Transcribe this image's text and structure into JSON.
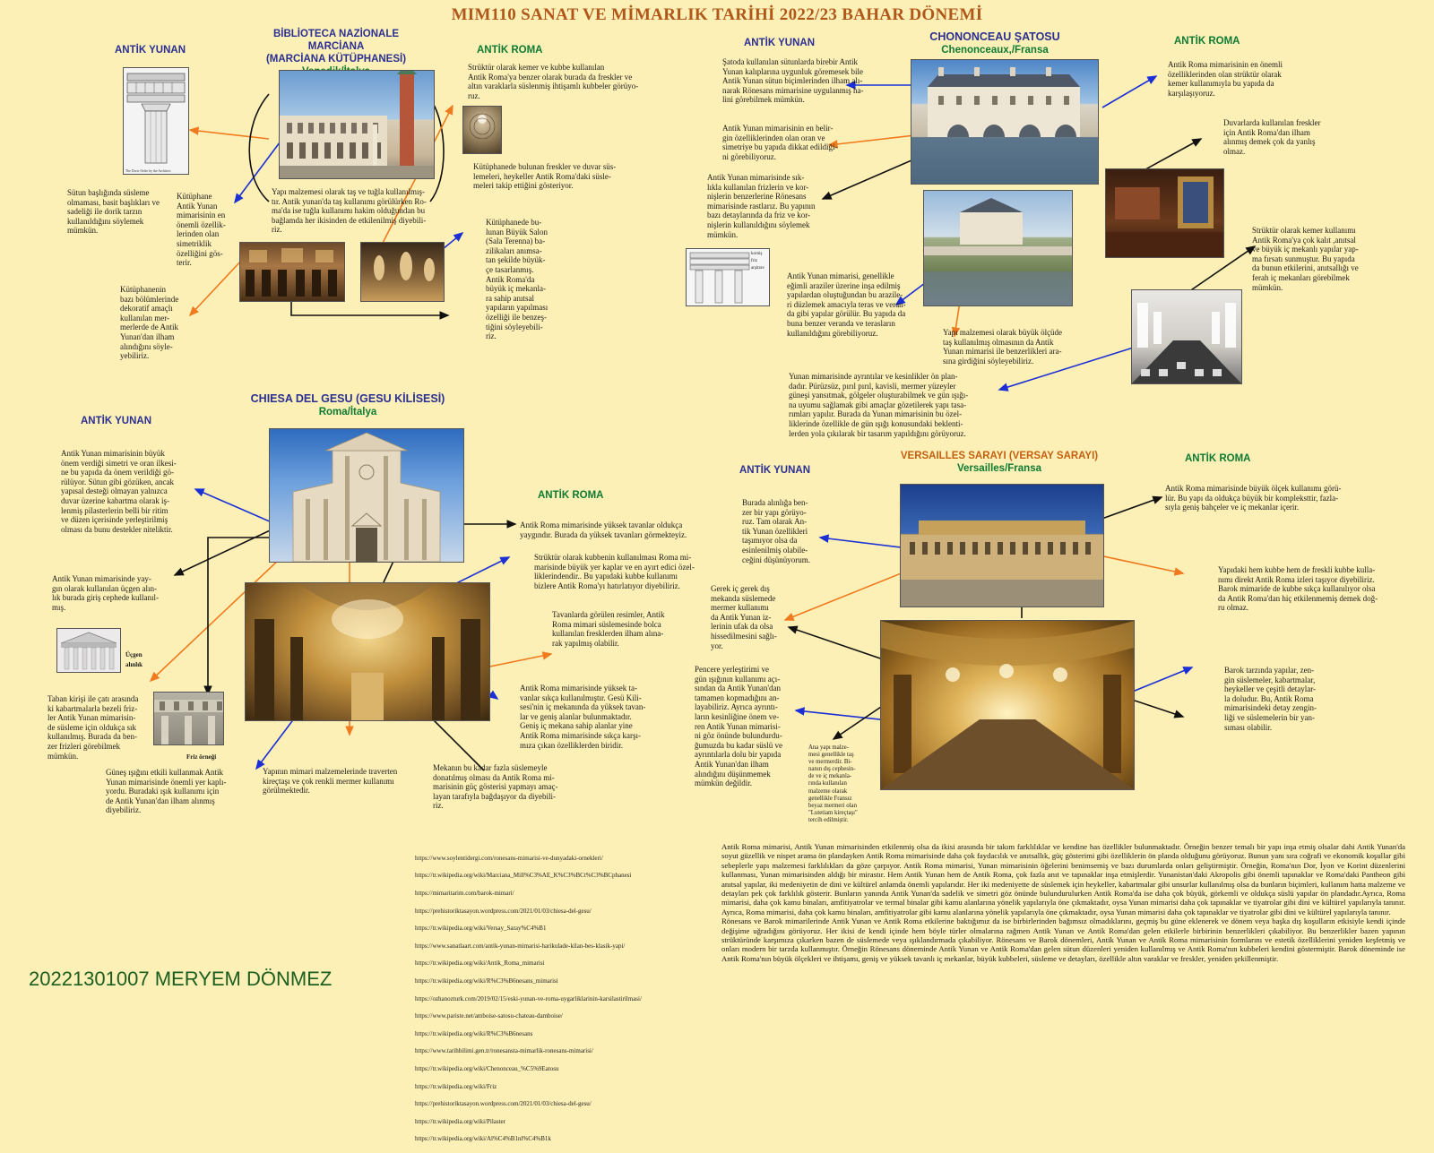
{
  "title": "MIM110 SANAT VE MİMARLIK TARİHİ 2022/23 BAHAR  DÖNEMİ",
  "labels": {
    "greek": "ANTİK YUNAN",
    "roman": "ANTİK ROMA"
  },
  "marciana": {
    "name1": "BİBLİOTECA NAZİONALE MARCİANA",
    "name2": "(MARCİANA KÜTÜPHANESİ)",
    "location": "Venedik/İtalya",
    "greek_caption": "The Doric Order by the Architect",
    "t_column": "Sütun başlığında süsleme olmaması, basit başlıkları ve sadeliği ile dorik tarzın kullanıldığını söylemek mümkün.",
    "t_library": "Kütüphane\nAntik Yunan\nmimarisinin en\nönemli özellik-\nlerinden olan\nsimetriklik\nözelliğini gös-\nterir.",
    "t_decor": "Kütüphanenin\nbazı bölümlerinde\ndekoratif amaçlı\nkullanılan mer-\nmerlerde de Antik\nYunan'dan ilham\nalındığını söyle-\nyebiliriz.",
    "t_material": "Yapı malzemesi olarak taş ve tuğla kullanılmış-\ntır. Antik yunan'da taş kullanımı görülürken Ro-\nma'da ise tuğla kullanımı hakim olduğundan bu\nbağlamda her ikisinden de etkilenilmiş diyebili-\nriz.",
    "t_roman_arch": "Strüktür olarak kemer ve kubbe kullanılan\nAntik Roma'ya benzer olarak burada da freskler ve\naltın varaklarla süslenmiş ihtişamlı kubbeler görüyo-\nruz.",
    "t_frescoes": "Kütüphanede bulunan freskler ve duvar süs-\nlemeleri, heykeller Antik Roma'daki süsle-\nmeleri takip ettiğini gösteriyor.",
    "t_salon": "Kütüphanede bu-\nlunan Büyük Salon\n(Sala Terenna) ba-\nzilikaları anımsa-\ntan şekilde büyük-\nçe tasarlanmış.\nAntik Roma'da\nbüyük iç mekanla-\nra sahip anıtsal\nyapıların yapılması\nözelliği ile benzeş-\ntiğini söyleyebili-\nriz."
  },
  "gesu": {
    "name": "CHIESA DEL GESU (GESU KİLİSESİ)",
    "location": "Roma/İtalya",
    "t_symmetry": "Antik Yunan mimarisinin büyük\nönem verdiği simetri ve oran ilkesi-\nne bu yapıda da önem verildiği gö-\nrülüyor. Sütun gibi gözüken, ancak\nyapısal desteği olmayan yalnızca\nduvar üzerine kabartma olarak iş-\nlenmiş pilasterlerin belli bir ritim\nve düzen içerisinde yerleştirilmiş\nolması da bunu destekler niteliktir.",
    "t_pediment": "Antik Yunan mimarisinde yay-\ngın olarak kullanılan üçgen alın-\nlık burada giriş cephede kullanıl-\nmış.",
    "cap_pediment": "Üçgen\nalınlık",
    "t_frieze": "Taban kirişi ile çatı arasında\nki kabartmalarla bezeli friz-\nler Antik Yunan mimarisin-\nde süsleme için oldukça sık\nkullanılmış. Burada da ben-\nzer frizleri görebilmek\nmümkün.",
    "cap_frieze": "Friz örneği",
    "t_light": "Güneş ışığını etkili kullanmak Antik\nYunan mimarisinde önemli yer kaplı-\nyordu. Buradaki ışık kullanımı için\nde Antik Yunan'dan ilham alınmış\ndiyebiliriz.",
    "t_travertine": "Yapının mimari malzemelerinde traverten\nkireçtaşı ve çok renkli mermer kullanımı\ngörülmektedir.",
    "t_ceilings": "Antik Roma mimarisinde yüksek tavanlar oldukça\nyaygındır. Burada da yüksek tavanları görmekteyiz.",
    "t_dome": "Strüktür olarak kubbenin kullanılması Roma mi-\nmarisinde büyük yer kaplar ve en ayırt edici özel-\nliklerindendir.. Bu yapıdaki kubbe kullanımı\nbizlere Antik Roma'yı hatırlatıyor diyebiliriz.",
    "t_paintings": "Tavanlarda görülen resimler, Antik\nRoma mimari süslemesinde bolca\nkullanılan  fresklerden ilham alına-\nrak yapılmış olabilir.",
    "t_high": "Antik Roma mimarisinde yüksek ta-\nvanlar sıkça kullanılmıştır. Gesü Kili-\nsesi'nin iç mekanında da yüksek tavan-\nlar ve geniş alanlar bulunmaktadır.\nGeniş iç mekana sahip alanlar yine\nAntik Roma mimarisinde sıkça karşı-\nmıza çıkan özelliklerden biridir.",
    "t_ornament": "Mekanın bu kadar fazla süslemeyle\ndonatılmış olması da Antik Roma mi-\nmarisinin güç gösterisi yapmayı amaç-\nlayan tarafıyla bağdaşıyor da diyebili-\nriz."
  },
  "chenonceau": {
    "name": "CHONONCEAU ŞATOSU",
    "location": "Chenonceaux,/Fransa",
    "t_columns": "Şatoda kullanılan sütunlarda birebir Antik\nYunan kalıplarına uygunluk göremesek bile\nAntik Yunan sütun biçimlerinden ilham alı-\nnarak Rönesans mimarisine uygulanmış ha-\nlini görebilmek mümkün.",
    "t_proportion": "Antik Yunan mimarisinin en belir-\ngin özelliklerinden olan oran ve\nsimetriye bu yapıda dikkat edildiği-\nni görebiliyoruz.",
    "t_frieze": "Antik Yunan mimarisinde sık-\nlıkla kullanılan frizlerin ve kor-\nnişlerin benzerlerine Rönesans\nmimarisinde rastlarız. Bu yapının\nbazı detaylarında da friz ve kor-\nnişlerin kullanıldığını söylemek\nmümkün.",
    "diagram_labels": [
      "korniş",
      "friz",
      "arşitrav"
    ],
    "t_slopes": "Antik Yunan mimarisi, genellikle\neğimli araziler üzerine inşa edilmiş\nyapılardan oluştuğundan  bu arazile-\nri düzlemek amacıyla teras ve veran-\nda gibi yapılar görülür. Bu yapıda da\nbuna benzer veranda ve terasların\nkullanıldığını görebiliyoruz.",
    "t_stone": "Yapı malzemesi olarak  büyük ölçüde\ntaş kullanılmış olmasının da Antik\nYunan mimarisi ile benzerlikleri ara-\nsına girdiğini söyleyebiliriz.",
    "t_precision": "Yunan  mimarisinde ayrıntılar ve kesinlikler ön plan-\ndadır. Pürüzsüz, pırıl pırıl, kavisli, mermer yüzeyler\ngüneşi yansıtmak, gölgeler oluşturabilmek ve gün ışığı-\nna uyumu sağlamak gibi amaçlar gözetilerek yapı tasa-\nrımları yapılır. Burada da Yunan mimarisinin bu özel-\nliklerinde özellikle de gün ışığı konusundaki beklenti-\nlerden yola çıkılarak bir tasarım yapıldığını görüyoruz.",
    "t_arch": "Antik Roma mimarisinin en önemli\nözelliklerinden olan strüktür olarak\nkemer kullanımıyla bu yapıda da\nkarşılaşıyoruz.",
    "t_fresco": "Duvarlarda kullanılan freskler\niçin Antik Roma'dan ilham\nalınmış demek çok da yanlış\nolmaz.",
    "t_monumental": "Strüktür olarak kemer kullanımı\nAntik Roma'ya çok kalıt ,anıtsal\nve büyük iç mekanlı yapılar yap-\nma fırsatı sunmuştur.  Bu yapıda\nda bunun etkilerini, anıtsallığı ve\nferah iç mekanları görebilmek\nmümkün."
  },
  "versailles": {
    "name": "VERSAILLES SARAYI (VERSAY SARAYI)",
    "location": "Versailles/Fransa",
    "t_bright": "Burada alınlığa ben-\nzer bir yapı görüyo-\nruz. Tam olarak An-\ntik Yunan özellikleri\ntaşımıyor olsa da\nesinlenilmiş olabile-\nceğini düşünüyorum.",
    "t_marble": "Gerek iç gerek dış\nmekanda süslemede\nmermer kullanımı\nda Antik Yunan iz-\nlerinin ufak da olsa\nhissedilmesini sağlı-\nyor.",
    "t_windows": "Pencere yerleştirimi ve\ngün ışığının kullanımı açı-\nsından da Antik Yunan'dan\ntamamen kopmadığını an-\nlayabiliriz. Ayrıca ayrıntı-\nların kesinliğine önem ve-\nren Antik Yunan mimarisi-\nni göz önünde bulundurdu-\nğumuzda bu kadar süslü ve\nayrıntılarla dolu bir yapıda\nAntik Yunan'dan ilham\nalındığını düşünmemek\nmümkün değildir.",
    "t_materials": "Ana yapı malze-\nmesi genellikle taş\nve mermerdir. Bi-\nnanın dış cephesin-\nde ve iç mekanla-\nrında kullanılan\nmalzeme olarak\ngenellikle Fransız\nbeyaz mermeri olan\n\"Lutetiam kireçtaşı\"\ntercih edilmiştir.",
    "t_scale": "Antik Roma mimarisinde büyük ölçek kullanımı görü-\nlür. Bu yapı da oldukça büyük bir kompleksttir, fazla-\nsıyla geniş bahçeler ve iç mekanlar içerir.",
    "t_domes": "Yapıdaki hem kubbe hem de freskli kubbe kulla-\nnımı direkt Antik Roma izleri taşıyor diyebiliriz.\nBarok mimaride de kubbe sıkça kullanılıyor olsa\nda Antik Roma'dan hiç etkilenmemiş demek doğ-\nru olmaz.",
    "t_baroque": "Barok tarzında yapılar, zen-\ngin süslemeler, kabartmalar,\nheykeller ve çeşitli detaylar-\nla doludur. Bu, Antik Roma\nmimarisindeki detay zengin-\nliği ve süslemelerin bir yan-\nsıması olabilir."
  },
  "essay": [
    "Antik Roma mimarisi, Antik Yunan mimarisinden etkilenmiş olsa da ikisi arasında bir takım farklılıklar ve kendine has özellikler bulunmaktadır. Örneğin benzer temalı bir yapı inşa etmiş olsalar dahi Antik Yunan'da soyut güzellik ve nispet arama ön plandayken Antik Roma mimarisinde daha çok faydacılık ve anıtsallık, güç gösterimi gibi özelliklerin ön planda olduğunu görüyoruz. Bunun yanı sıra coğrafi ve ekonomik koşullar gibi sebeplerle yapı malzemesi farklılıkları da göze çarpıyor. Antik Roma mimarisi, Yunan mimarisinin öğelerini benimsemiş ve bazı durumlarda onları geliştirmiştir. Örneğin, Roma'nın Dor, İyon ve Korint düzenlerini kullanması, Yunan mimarisinden aldığı bir mirastır. Hem Antik Yunan hem de Antik Roma, çok fazla anıt ve tapınaklar inşa etmişlerdir. Yunanistan'daki Akropolis gibi önemli tapınaklar ve Roma'daki Pantheon gibi anıtsal yapılar, iki medeniyetin de dini ve kültürel anlamda önemli yapılarıdır. Her iki medeniyette de süslemek için heykeller, kabartmalar gibi unsurlar kullanılmış olsa da bunların biçimleri, kullanım hatta malzeme ve detayları pek çok farklılık gösterir. Bunların yanında Antik Yunan'da sadelik ve simetri göz önünde bulundurulurken Antik Roma'da ise daha çok büyük, görkemli ve oldukça süslü yapılar ön plandadır.Ayrıca, Roma mimarisi, daha çok kamu binaları, amfitiyatrolar ve termal binalar gibi kamu alanlarına yönelik yapılarıyla öne çıkmaktadır, oysa Yunan mimarisi daha çok tapınaklar ve tiyatrolar gibi dini ve kültürel yapılarıyla tanınır.  Ayrıca, Roma mimarisi, daha çok kamu binaları, amfitiyatrolar gibi kamu alanlarına yönelik yapılarıyla öne çıkmaktadır, oysa Yunan mimarisi daha çok tapınaklar ve tiyatrolar gibi dini ve kültürel yapılarıyla tanınır.",
    "Rönesans ve Barok mimarilerinde Antik Yunan ve Antik Roma etkilerine baktığımız da ise birbirlerinden bağımsız olmadıklarını, geçmiş bu güne eklenerek ve dönem veya başka dış koşulların etkisiyle kendi içinde değişime uğradığını görüyoruz. Her ikisi de kendi içinde hem böyle türler olmalarına rağmen Antik Yunan ve Antik Roma'dan gelen etkilerle birbirinin benzerlikleri çıkabiliyor. Bu benzerlikler bazen yapının strüktüründe karşımıza çıkarken bazen de süslemede veya ışıklandırmada çıkabiliyor. Rönesans ve Barok dönemleri, Antik Yunan ve Antik Roma mimarisinin formlarını ve estetik özelliklerini yeniden keşfetmiş ve onları modern bir tarzda kullanmıştır. Örneğin Rönesans döneminde Antik Yunan ve Antik Roma'dan gelen sütun düzenleri yeniden kullanılmış ve Antik Roma'nın kubbeleri kendini göstermiştir. Barok döneminde ise Antik Roma'nın büyük ölçekleri ve ihtişamı, geniş ve yüksek tavanlı iç mekanlar, büyük kubbeleri, süsleme ve detayları, özellikle altın varaklar ve freskler, yeniden şekillenmiştir."
  ],
  "references": [
    "https://www.soylentidergi.com/ronesans-mimarisi-ve-dunyadaki-ornekleri/",
    "https://tr.wikipedia.org/wiki/Marciana_Mill%C3%AE_K%C3%BCt%C3%BCphanesi",
    "https://mimaritarim.com/barok-mimari/",
    "https://prehistoriktasayon.wordpress.com/2021/01/03/chiesa-del-gesu/",
    "https://tr.wikipedia.org/wiki/Versay_Saray%C4%B1",
    "https://www.sanatlaart.com/antik-yunan-mimarisi-harikulade-kilan-bes-klasik-yapi/",
    "https://tr.wikipedia.org/wiki/Antik_Roma_mimarisi",
    "https://tr.wikipedia.org/wiki/R%C3%B6nesans_mimarisi",
    "https://ozhanozturk.com/2019/02/15/eski-yunan-ve-roma-uygarliklarinin-karsilastirilmasi/",
    "https://www.pariste.net/amboise-satosu-chateau-damboise/",
    "https://tr.wikipedia.org/wiki/R%C3%B6nesans",
    "https://www.tarihbilimi.gen.tr/ronesansta-mimarlik-ronesans-mimarisi/",
    "https://tr.wikipedia.org/wiki/Chenonceau_%C5%9Eatosu",
    "https://tr.wikipedia.org/wiki/Friz",
    "https://prehistoriktasayon.wordpress.com/2021/01/03/chiesa-del-gesu/",
    "https://tr.wikipedia.org/wiki/Pilaster",
    "https://tr.wikipedia.org/wiki/Al%C4%B1nl%C4%B1k"
  ],
  "student": "20221301007 MERYEM DÖNMEZ",
  "colors": {
    "background": "#fdf0b6",
    "title": "#b0581a",
    "greek_label": "#2a2f93",
    "roman_label": "#0e7a33",
    "arrow_blue": "#1a2fd6",
    "arrow_orange": "#f07a1e",
    "arrow_black": "#111111"
  }
}
